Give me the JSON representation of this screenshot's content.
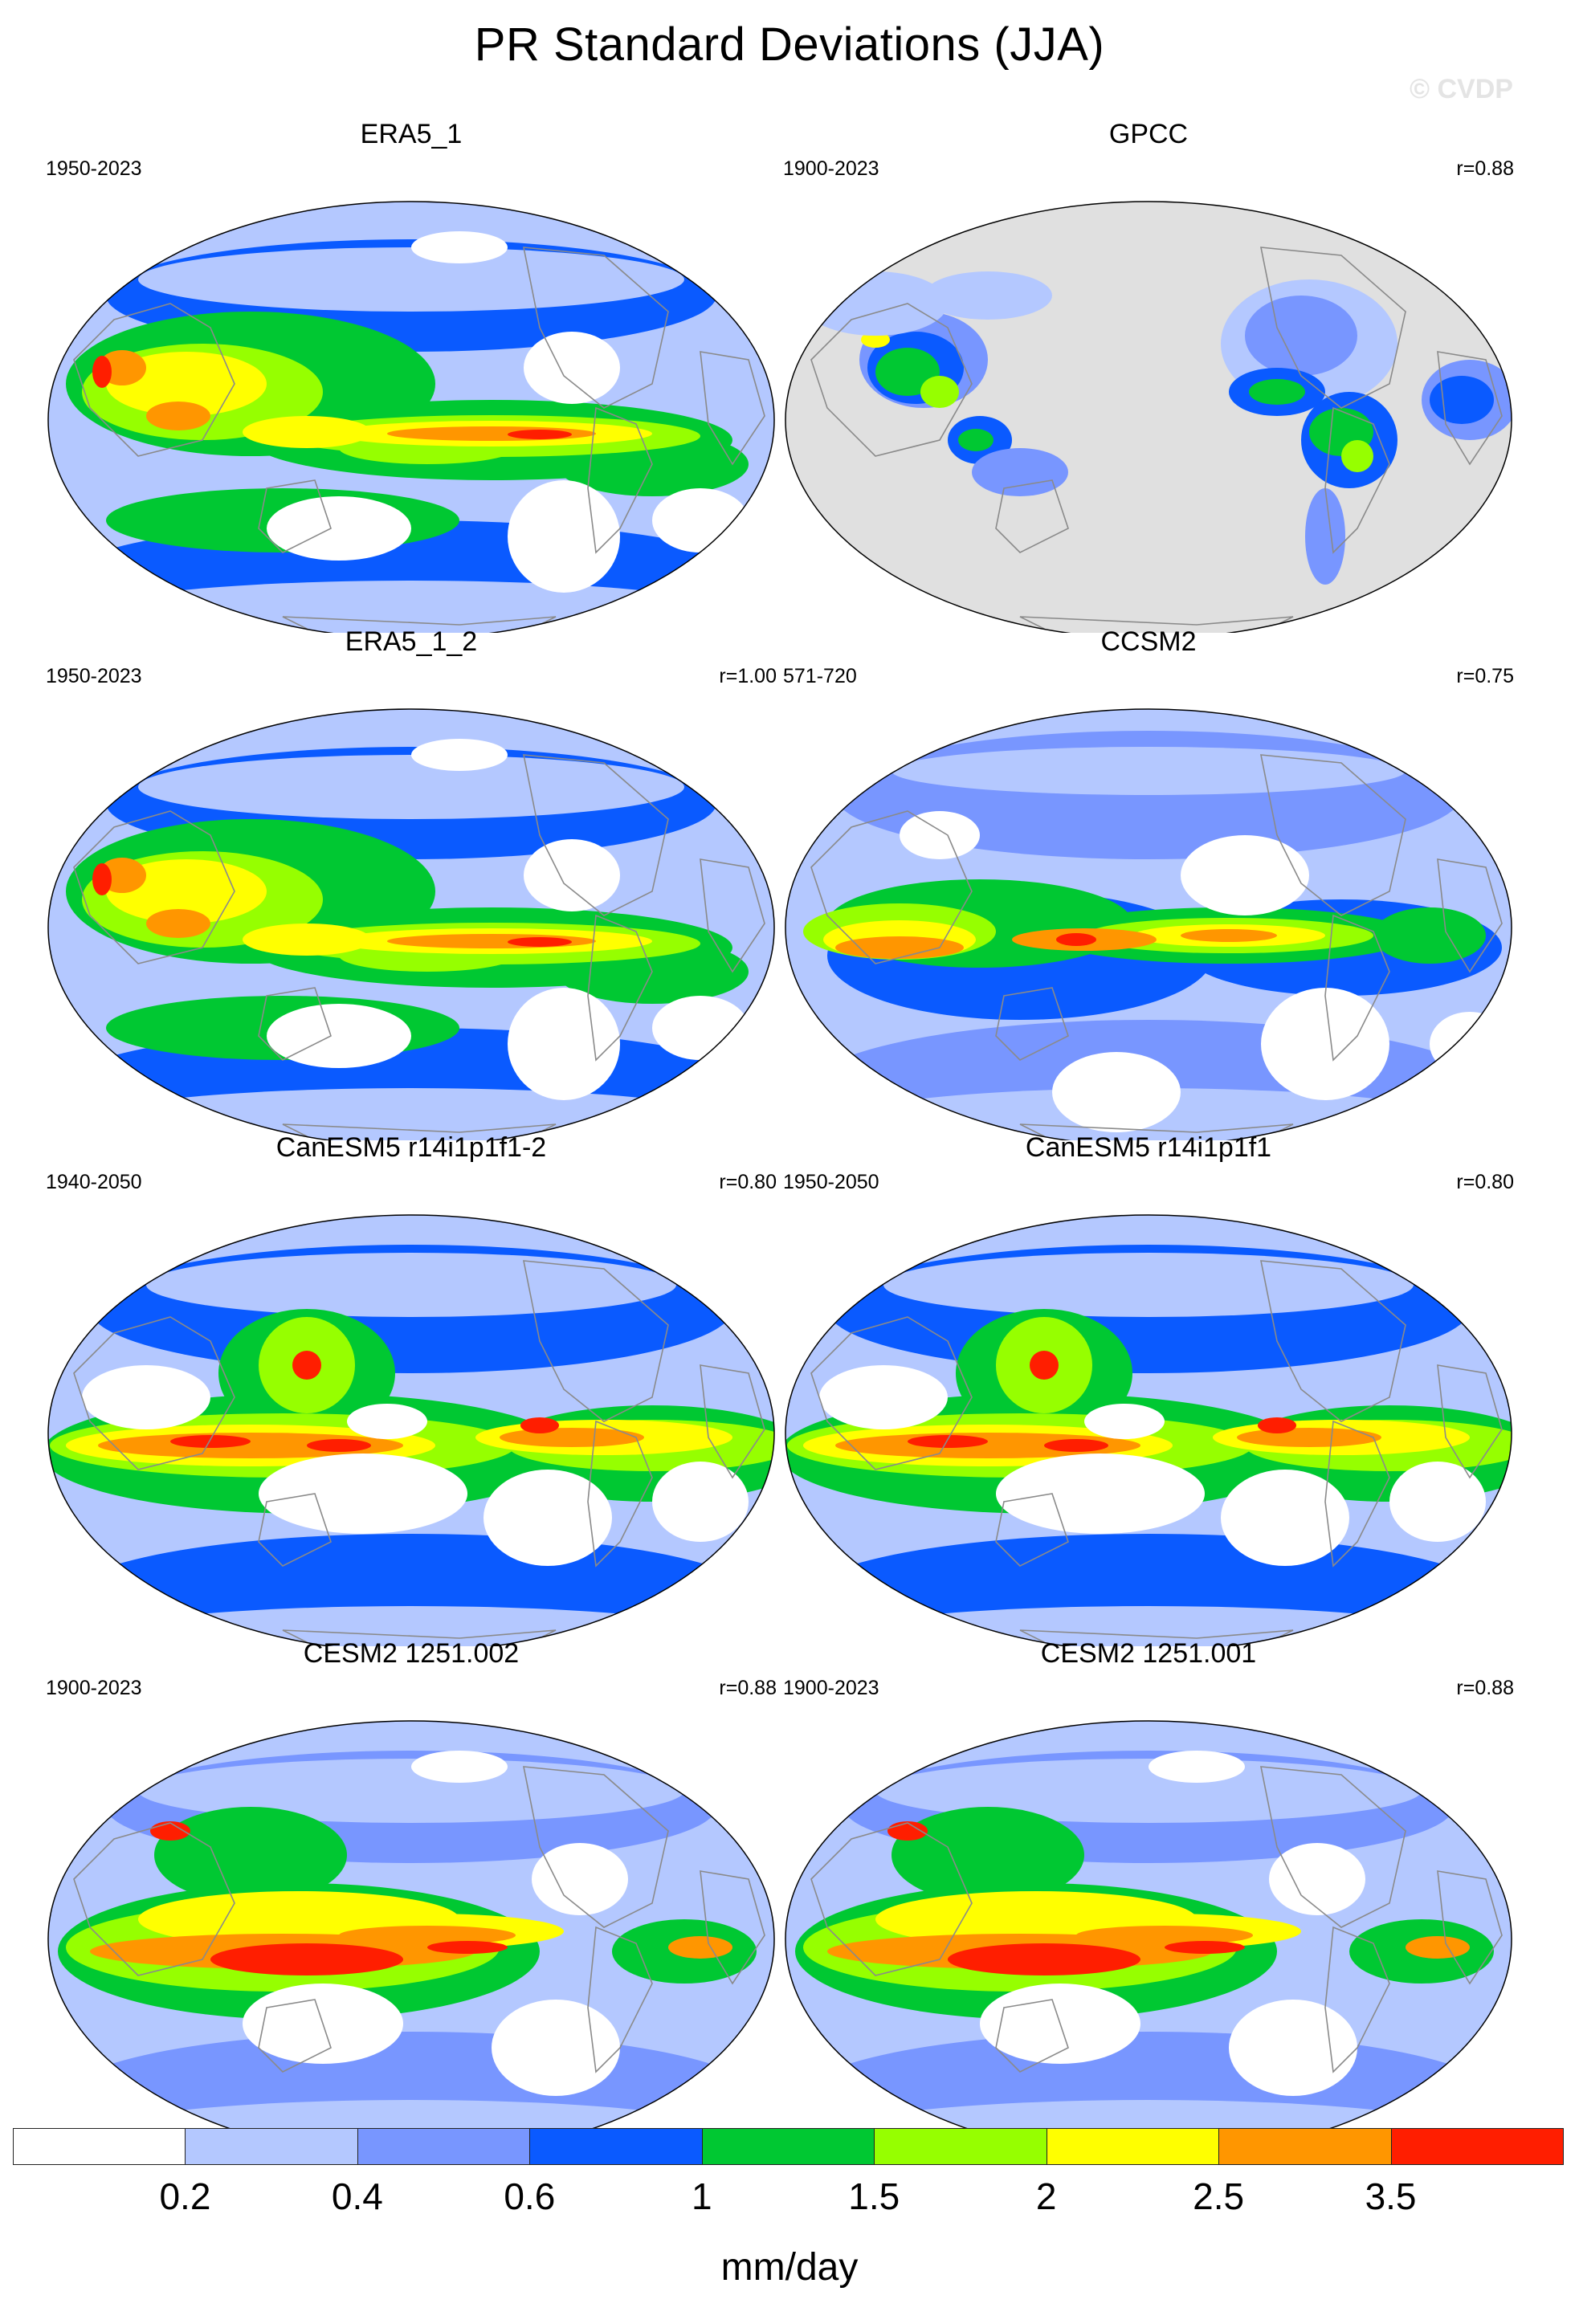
{
  "title": "PR Standard Deviations (JJA)",
  "watermark": "© CVDP",
  "panels": [
    {
      "id": "era5-1",
      "title": "ERA5_1",
      "years": "1950-2023",
      "r": "",
      "kind": "era5"
    },
    {
      "id": "gpcc",
      "title": "GPCC",
      "years": "1900-2023",
      "r": "r=0.88",
      "kind": "gpcc"
    },
    {
      "id": "era5-1-2",
      "title": "ERA5_1_2",
      "years": "1950-2023",
      "r": "r=1.00",
      "kind": "era5"
    },
    {
      "id": "ccsm2",
      "title": "CCSM2",
      "years": "571-720",
      "r": "r=0.75",
      "kind": "ccsm2"
    },
    {
      "id": "canesm5-2",
      "title": "CanESM5 r14i1p1f1-2",
      "years": "1940-2050",
      "r": "r=0.80",
      "kind": "canesm"
    },
    {
      "id": "canesm5-1",
      "title": "CanESM5 r14i1p1f1",
      "years": "1950-2050",
      "r": "r=0.80",
      "kind": "canesm"
    },
    {
      "id": "cesm2-002",
      "title": "CESM2 1251.002",
      "years": "1900-2023",
      "r": "r=0.88",
      "kind": "cesm"
    },
    {
      "id": "cesm2-001",
      "title": "CESM2 1251.001",
      "years": "1900-2023",
      "r": "r=0.88",
      "kind": "cesm"
    }
  ],
  "colorbar": {
    "labels": [
      "0.2",
      "0.4",
      "0.6",
      "1",
      "1.5",
      "2",
      "2.5",
      "3.5"
    ],
    "colors": [
      "#ffffff",
      "#b4c8ff",
      "#7896ff",
      "#0a5aff",
      "#00c832",
      "#96ff00",
      "#ffff00",
      "#ff9600",
      "#ff1e00"
    ],
    "units": "mm/day"
  },
  "colors": {
    "land_mask": "#e0e0e0",
    "coastline": "#8a8a8a"
  }
}
